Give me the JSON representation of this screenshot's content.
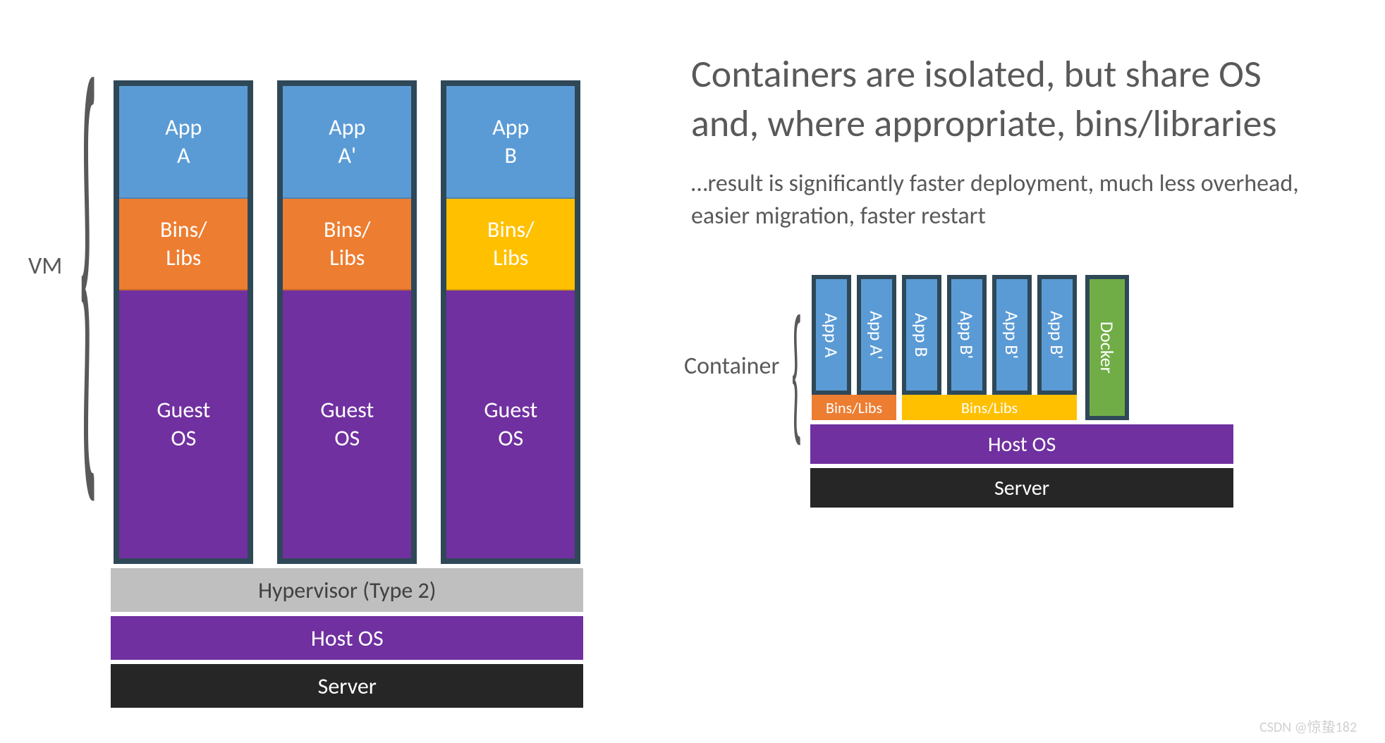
{
  "colors": {
    "blue": "#5b9bd5",
    "orange": "#ed7d31",
    "yellow": "#ffc000",
    "purple": "#7030a0",
    "green": "#70ad47",
    "gray": "#bfbfbf",
    "dark": "#262626",
    "border": "#2f4858",
    "text": "#595959"
  },
  "vm": {
    "label": "VM",
    "columns": [
      {
        "app": "App A",
        "bins": "Bins/ Libs",
        "bins_color": "#ed7d31",
        "os": "Guest OS"
      },
      {
        "app": "App A'",
        "bins": "Bins/ Libs",
        "bins_color": "#ed7d31",
        "os": "Guest OS"
      },
      {
        "app": "App B",
        "bins": "Bins/ Libs",
        "bins_color": "#ffc000",
        "os": "Guest OS"
      }
    ],
    "heights": {
      "app": 160,
      "bins": 130,
      "os": 380
    },
    "hypervisor": "Hypervisor (Type 2)",
    "hostos": "Host OS",
    "server": "Server"
  },
  "text": {
    "heading": "Containers are isolated, but share OS and, where appropriate, bins/libraries",
    "sub": "…result is significantly faster deployment, much less overhead, easier migration, faster restart"
  },
  "container": {
    "label": "Container",
    "group1": {
      "apps": [
        "App A",
        "App A'"
      ],
      "bins": "Bins/Libs",
      "bins_color": "#ed7d31"
    },
    "group2": {
      "apps": [
        "App B",
        "App B'",
        "App B'",
        "App B'"
      ],
      "bins": "Bins/Libs",
      "bins_color": "#ffc000"
    },
    "docker": "Docker",
    "hostos": "Host OS",
    "server": "Server"
  },
  "watermark": "CSDN @惊蛰182"
}
